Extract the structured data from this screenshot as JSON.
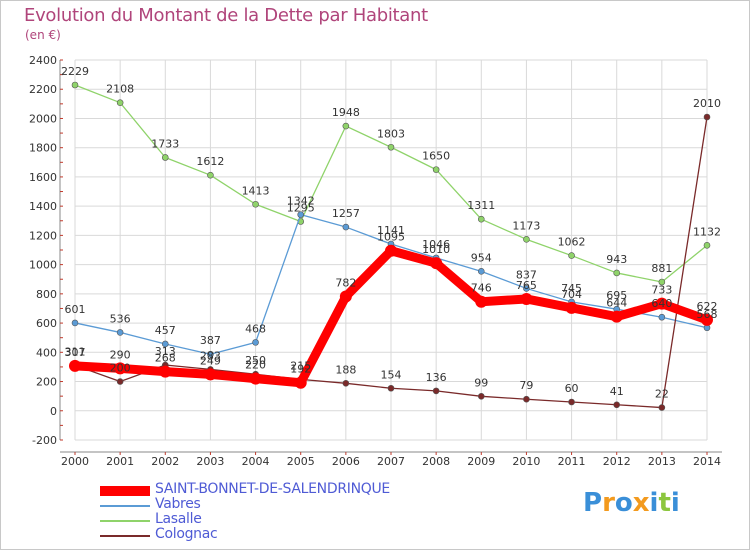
{
  "title": "Evolution du Montant de la Dette par Habitant",
  "unit_label": "(en €)",
  "brand": {
    "letters": [
      "P",
      "r",
      "o",
      "x",
      "i",
      "t",
      "i"
    ],
    "colors": [
      "#3a8fd8",
      "#f39a1e",
      "#3a8fd8",
      "#f39a1e",
      "#3a8fd8",
      "#8cc63e",
      "#3a8fd8"
    ]
  },
  "chart_data": {
    "type": "line",
    "title": "Evolution du Montant de la Dette par Habitant",
    "ylabel": "(en €)",
    "xlabel": "",
    "x": [
      2000,
      2001,
      2002,
      2003,
      2004,
      2005,
      2006,
      2007,
      2008,
      2009,
      2010,
      2011,
      2012,
      2013,
      2014
    ],
    "ylim": [
      -200,
      2400
    ],
    "yticks": [
      -200,
      0,
      200,
      400,
      600,
      800,
      1000,
      1200,
      1400,
      1600,
      1800,
      2000,
      2200,
      2400
    ],
    "grid": true,
    "legend_position": "bottom-left",
    "series": [
      {
        "name": "SAINT-BONNET-DE-SALENDRINQUE",
        "color": "#ff0000",
        "values": [
          307,
          290,
          268,
          249,
          220,
          192,
          782,
          1095,
          1010,
          746,
          765,
          704,
          644,
          733,
          622
        ]
      },
      {
        "name": "Vabres",
        "color": "#5b9bd5",
        "values": [
          601,
          536,
          457,
          387,
          468,
          1342,
          1257,
          1141,
          1046,
          954,
          837,
          745,
          695,
          640,
          568
        ]
      },
      {
        "name": "Lasalle",
        "color": "#8fd36a",
        "values": [
          2229,
          2108,
          1733,
          1612,
          1413,
          1295,
          1948,
          1803,
          1650,
          1311,
          1173,
          1062,
          943,
          881,
          1132
        ]
      },
      {
        "name": "Colognac",
        "color": "#7a2a2a",
        "values": [
          311,
          200,
          313,
          283,
          250,
          215,
          188,
          154,
          136,
          99,
          79,
          60,
          41,
          22,
          2010
        ]
      }
    ]
  }
}
